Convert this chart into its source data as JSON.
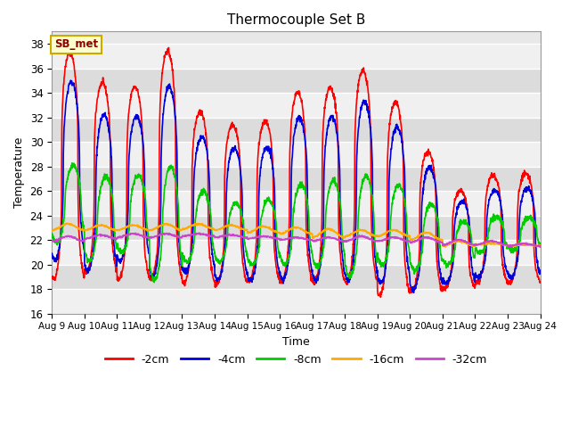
{
  "title": "Thermocouple Set B",
  "xlabel": "Time",
  "ylabel": "Temperature",
  "ylim": [
    16,
    39
  ],
  "xlim": [
    0,
    15
  ],
  "xtick_labels": [
    "Aug 9",
    "Aug 10",
    "Aug 11",
    "Aug 12",
    "Aug 13",
    "Aug 14",
    "Aug 15",
    "Aug 16",
    "Aug 17",
    "Aug 18",
    "Aug 19",
    "Aug 20",
    "Aug 21",
    "Aug 22",
    "Aug 23",
    "Aug 24"
  ],
  "xtick_positions": [
    0,
    1,
    2,
    3,
    4,
    5,
    6,
    7,
    8,
    9,
    10,
    11,
    12,
    13,
    14,
    15
  ],
  "ytick_positions": [
    16,
    18,
    20,
    22,
    24,
    26,
    28,
    30,
    32,
    34,
    36,
    38
  ],
  "colors": {
    "-2cm": "#ff0000",
    "-4cm": "#0000dd",
    "-8cm": "#00cc00",
    "-16cm": "#ffaa00",
    "-32cm": "#cc44cc"
  },
  "legend_labels": [
    "-2cm",
    "-4cm",
    "-8cm",
    "-16cm",
    "-32cm"
  ],
  "annotation_text": "SB_met",
  "annotation_bg": "#ffffcc",
  "annotation_border": "#ccaa00",
  "background_color": "#e8e8e8",
  "band_color_light": "#f0f0f0",
  "band_color_dark": "#dcdcdc",
  "figure_bg": "#ffffff",
  "linewidth": 1.2,
  "n_points": 2000,
  "days": 15,
  "day_peaks": {
    "-2cm": [
      37.3,
      34.8,
      34.5,
      37.4,
      32.4,
      31.4,
      31.6,
      34.0,
      34.4,
      35.8,
      33.2,
      29.2,
      26.0,
      27.3,
      27.4
    ],
    "-4cm": [
      34.9,
      32.2,
      32.1,
      34.5,
      30.4,
      29.5,
      29.6,
      32.0,
      32.1,
      33.3,
      31.2,
      27.9,
      25.1,
      26.1,
      26.2
    ],
    "-8cm": [
      28.1,
      27.2,
      27.3,
      28.0,
      26.0,
      25.0,
      25.3,
      26.5,
      26.8,
      27.2,
      26.5,
      24.9,
      23.5,
      23.9,
      23.8
    ],
    "-16cm": [
      23.3,
      23.2,
      23.2,
      23.3,
      23.3,
      23.2,
      23.1,
      23.0,
      22.9,
      22.8,
      22.8,
      22.6,
      21.9,
      21.7,
      21.6
    ],
    "-32cm": [
      22.3,
      22.4,
      22.5,
      22.5,
      22.5,
      22.4,
      22.3,
      22.2,
      22.2,
      22.3,
      22.2,
      22.2,
      22.0,
      21.9,
      21.7
    ]
  },
  "day_troughs": {
    "-2cm": [
      18.8,
      19.4,
      18.8,
      18.8,
      18.5,
      18.4,
      18.6,
      18.6,
      18.5,
      18.5,
      17.5,
      17.8,
      18.0,
      18.5,
      18.5
    ],
    "-4cm": [
      20.4,
      19.5,
      20.3,
      19.0,
      19.4,
      18.8,
      18.7,
      18.8,
      18.7,
      18.7,
      18.5,
      18.0,
      18.5,
      19.0,
      19.0
    ],
    "-8cm": [
      21.8,
      20.3,
      21.0,
      18.8,
      20.2,
      20.2,
      20.0,
      20.0,
      19.8,
      19.0,
      20.0,
      19.5,
      20.0,
      21.0,
      21.2
    ],
    "-16cm": [
      22.8,
      22.8,
      22.8,
      22.8,
      22.9,
      22.8,
      22.6,
      22.5,
      22.2,
      22.3,
      22.3,
      22.0,
      21.5,
      21.6,
      21.5
    ],
    "-32cm": [
      21.9,
      22.1,
      22.2,
      22.2,
      22.3,
      22.2,
      22.1,
      22.0,
      21.9,
      21.9,
      21.9,
      21.8,
      21.6,
      21.6,
      21.5
    ]
  },
  "peak_time": {
    "-2cm": 0.55,
    "-4cm": 0.6,
    "-8cm": 0.65,
    "-16cm": 0.5,
    "-32cm": 0.5
  },
  "sharpness": {
    "-2cm": 3.0,
    "-4cm": 2.5,
    "-8cm": 1.8,
    "-16cm": 1.0,
    "-32cm": 1.0
  }
}
